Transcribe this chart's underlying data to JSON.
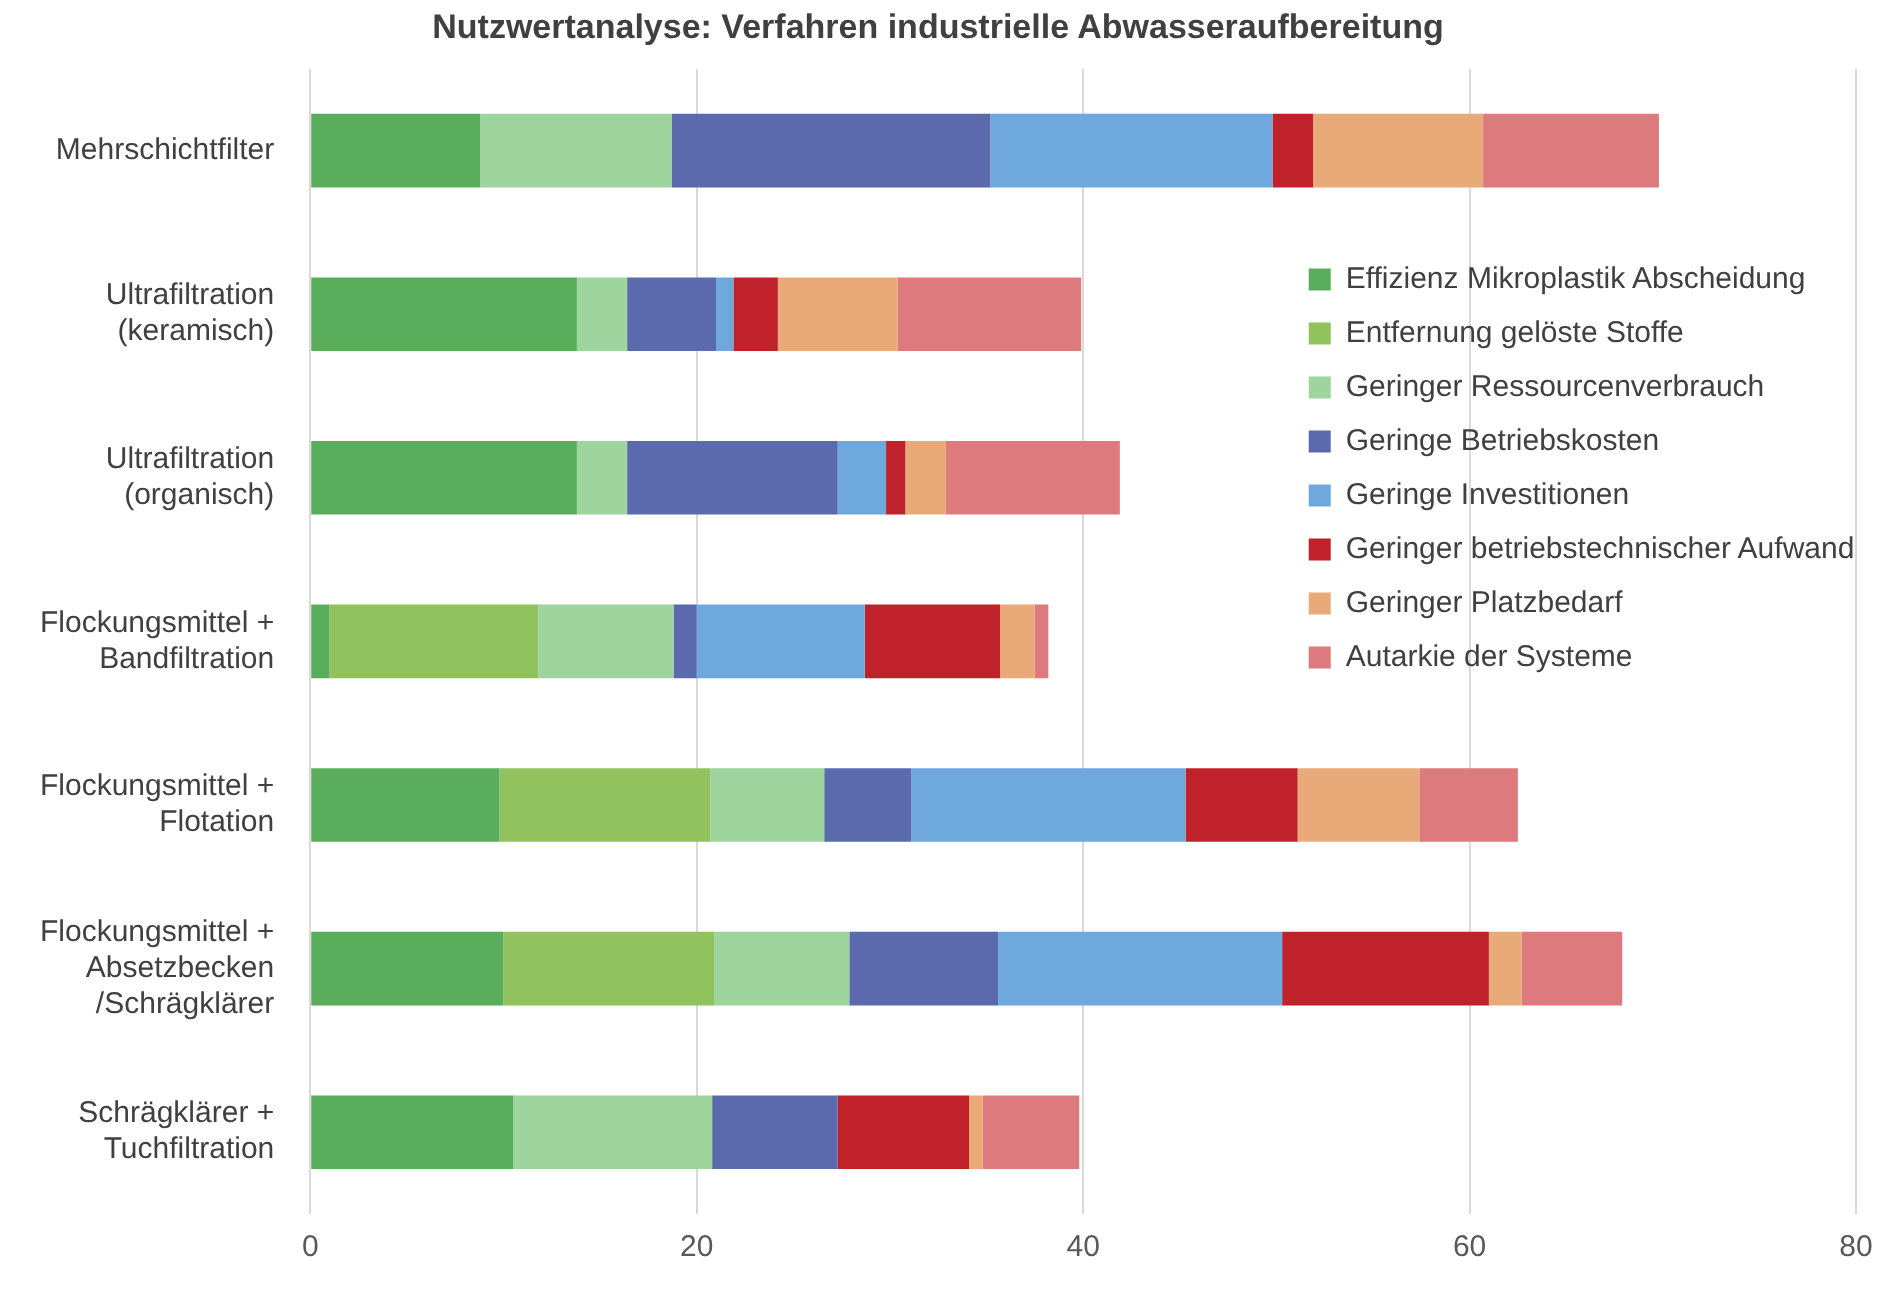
{
  "chart_data": {
    "type": "bar",
    "orientation": "horizontal",
    "stacked": true,
    "title": "Nutzwertanalyse: Verfahren industrielle Abwasseraufbereitung",
    "categories": [
      "Mehrschichtfilter",
      "Ultrafiltration (keramisch)",
      "Ultrafiltration (organisch)",
      "Flockungsmittel + Bandfiltration",
      "Flockungsmittel + Flotation",
      "Flockungsmittel + Absetzbecken /Schrägklärer",
      "Schrägklärer + Tuchfiltration"
    ],
    "series": [
      {
        "name": "Effizienz Mikroplastik Abscheidung",
        "color": "#5aad5a",
        "values": [
          8.8,
          13.8,
          13.8,
          1.0,
          9.8,
          10.0,
          10.5
        ]
      },
      {
        "name": "Entfernung gelöste Stoffe",
        "color": "#92c25e",
        "values": [
          0,
          0,
          0,
          10.8,
          10.9,
          10.9,
          0
        ]
      },
      {
        "name": "Geringer Ressourcenverbrauch",
        "color": "#9ed49e",
        "values": [
          9.9,
          2.6,
          2.6,
          7.0,
          5.9,
          7.0,
          10.3
        ]
      },
      {
        "name": "Geringe Betriebskosten",
        "color": "#5b6aad",
        "values": [
          16.5,
          4.6,
          10.9,
          1.2,
          4.5,
          7.7,
          6.5
        ]
      },
      {
        "name": "Geringe Investitionen",
        "color": "#6fa8dc",
        "values": [
          14.6,
          0.9,
          2.5,
          8.7,
          14.2,
          14.7,
          0
        ]
      },
      {
        "name": "Geringer betriebstechnischer Aufwand",
        "color": "#c0222c",
        "values": [
          2.1,
          2.3,
          1.0,
          7.0,
          5.8,
          10.7,
          6.8
        ]
      },
      {
        "name": "Geringer Platzbedarf",
        "color": "#e8aa78",
        "values": [
          8.8,
          6.2,
          2.1,
          1.8,
          6.3,
          1.7,
          0.7
        ]
      },
      {
        "name": "Autarkie der Systeme",
        "color": "#dd7a7e",
        "values": [
          9.1,
          9.5,
          9.0,
          0.7,
          5.1,
          5.2,
          5.0
        ]
      }
    ],
    "xlim": [
      0,
      80
    ],
    "xticks": [
      0,
      20,
      40,
      60,
      80
    ],
    "grid": "x",
    "legend": "right"
  }
}
